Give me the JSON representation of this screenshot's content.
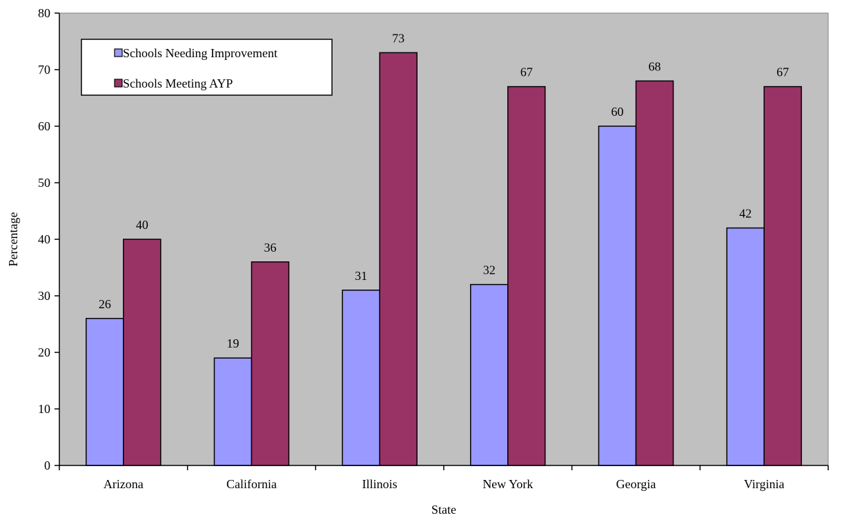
{
  "chart_data": {
    "type": "bar",
    "categories": [
      "Arizona",
      "California",
      "Illinois",
      "New York",
      "Georgia",
      "Virginia"
    ],
    "series": [
      {
        "name": "Schools Needing Improvement",
        "values": [
          26,
          19,
          31,
          32,
          60,
          42
        ],
        "color": "#9999ff"
      },
      {
        "name": "Schools Meeting AYP",
        "values": [
          40,
          36,
          73,
          67,
          68,
          67
        ],
        "color": "#993366"
      }
    ],
    "xlabel": "State",
    "ylabel": "Percentage",
    "ylim": [
      0,
      80
    ],
    "yticks": [
      0,
      10,
      20,
      30,
      40,
      50,
      60,
      70,
      80
    ],
    "plot_background": "#c0c0c0",
    "grid": false,
    "legend_position": "top-left",
    "data_labels": true
  }
}
